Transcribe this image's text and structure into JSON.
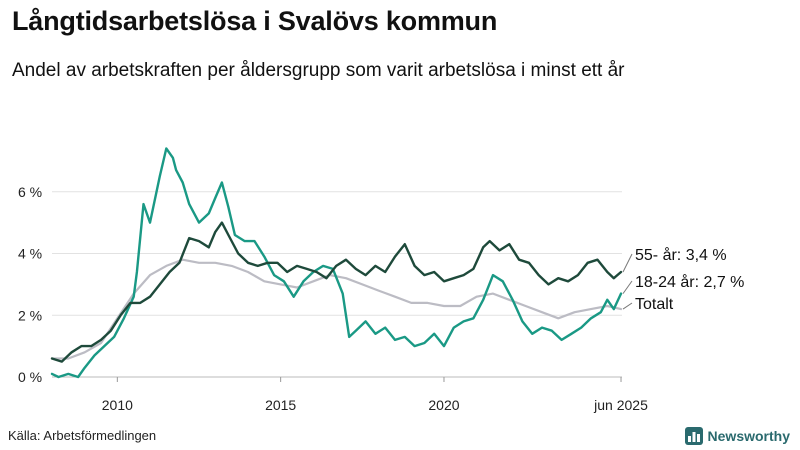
{
  "title": "Långtidsarbetslösa i Svalövs kommun",
  "subtitle": "Andel av arbetskraften per åldersgrupp som varit arbetslösa i minst ett år",
  "source": "Källa: Arbetsförmedlingen",
  "brand": "Newsworthy",
  "chart_data": {
    "type": "line",
    "ylim": [
      0,
      8
    ],
    "xlim": [
      2008.0,
      2025.45
    ],
    "yticks": [
      0,
      2,
      4,
      6
    ],
    "ytick_labels": [
      "0 %",
      "2 %",
      "4 %",
      "6 %"
    ],
    "xticks": [
      2010,
      2015,
      2020,
      2025.42
    ],
    "xtick_labels": [
      "2010",
      "2015",
      "2020",
      "jun 2025"
    ],
    "grid": true,
    "colors": {
      "age55": "#1e4a3b",
      "age18": "#1a9985",
      "total": "#bcbcc4"
    },
    "series": [
      {
        "name": "Totalt",
        "key": "total",
        "label": "Totalt",
        "x": [
          2008.0,
          2008.5,
          2009.0,
          2009.5,
          2010.0,
          2010.5,
          2011.0,
          2011.5,
          2012.0,
          2012.5,
          2013.0,
          2013.5,
          2014.0,
          2014.5,
          2015.0,
          2015.5,
          2016.0,
          2016.5,
          2017.0,
          2017.5,
          2018.0,
          2018.5,
          2019.0,
          2019.5,
          2020.0,
          2020.5,
          2021.0,
          2021.5,
          2022.0,
          2022.5,
          2023.0,
          2023.5,
          2024.0,
          2024.5,
          2025.0,
          2025.42
        ],
        "values": [
          0.6,
          0.6,
          0.8,
          1.1,
          1.9,
          2.7,
          3.3,
          3.6,
          3.8,
          3.7,
          3.7,
          3.6,
          3.4,
          3.1,
          3.0,
          2.9,
          3.1,
          3.3,
          3.2,
          3.0,
          2.8,
          2.6,
          2.4,
          2.4,
          2.3,
          2.3,
          2.6,
          2.7,
          2.5,
          2.3,
          2.1,
          1.9,
          2.1,
          2.2,
          2.3,
          2.2
        ]
      },
      {
        "name": "18-24 år",
        "key": "age18",
        "label": "18-24 år: 2,7 %",
        "x": [
          2008.0,
          2008.2,
          2008.5,
          2008.8,
          2009.0,
          2009.3,
          2009.6,
          2009.9,
          2010.2,
          2010.5,
          2010.6,
          2010.8,
          2011.0,
          2011.3,
          2011.5,
          2011.7,
          2011.8,
          2012.0,
          2012.2,
          2012.5,
          2012.8,
          2013.0,
          2013.2,
          2013.4,
          2013.6,
          2013.9,
          2014.2,
          2014.5,
          2014.8,
          2015.1,
          2015.4,
          2015.7,
          2016.0,
          2016.3,
          2016.6,
          2016.9,
          2017.1,
          2017.3,
          2017.6,
          2017.9,
          2018.2,
          2018.5,
          2018.8,
          2019.1,
          2019.4,
          2019.7,
          2020.0,
          2020.3,
          2020.6,
          2020.9,
          2021.2,
          2021.5,
          2021.8,
          2022.1,
          2022.4,
          2022.7,
          2023.0,
          2023.3,
          2023.6,
          2023.9,
          2024.2,
          2024.5,
          2024.8,
          2025.0,
          2025.2,
          2025.42
        ],
        "values": [
          0.1,
          0.0,
          0.1,
          0.0,
          0.3,
          0.7,
          1.0,
          1.3,
          1.9,
          2.6,
          3.4,
          5.6,
          5.0,
          6.5,
          7.4,
          7.1,
          6.7,
          6.3,
          5.6,
          5.0,
          5.3,
          5.8,
          6.3,
          5.5,
          4.6,
          4.4,
          4.4,
          3.9,
          3.3,
          3.1,
          2.6,
          3.1,
          3.4,
          3.6,
          3.5,
          2.7,
          1.3,
          1.5,
          1.8,
          1.4,
          1.6,
          1.2,
          1.3,
          1.0,
          1.1,
          1.4,
          1.0,
          1.6,
          1.8,
          1.9,
          2.5,
          3.3,
          3.1,
          2.5,
          1.8,
          1.4,
          1.6,
          1.5,
          1.2,
          1.4,
          1.6,
          1.9,
          2.1,
          2.5,
          2.2,
          2.7
        ]
      },
      {
        "name": "55- år",
        "key": "age55",
        "label": "55- år: 3,4 %",
        "x": [
          2008.0,
          2008.3,
          2008.6,
          2008.9,
          2009.2,
          2009.5,
          2009.8,
          2010.1,
          2010.4,
          2010.7,
          2011.0,
          2011.3,
          2011.6,
          2011.9,
          2012.2,
          2012.5,
          2012.8,
          2013.0,
          2013.2,
          2013.4,
          2013.7,
          2014.0,
          2014.3,
          2014.6,
          2014.9,
          2015.2,
          2015.5,
          2015.8,
          2016.1,
          2016.4,
          2016.7,
          2017.0,
          2017.3,
          2017.6,
          2017.9,
          2018.2,
          2018.5,
          2018.8,
          2019.1,
          2019.4,
          2019.7,
          2020.0,
          2020.3,
          2020.6,
          2020.9,
          2021.2,
          2021.4,
          2021.7,
          2022.0,
          2022.3,
          2022.6,
          2022.9,
          2023.2,
          2023.5,
          2023.8,
          2024.1,
          2024.4,
          2024.7,
          2025.0,
          2025.2,
          2025.42
        ],
        "values": [
          0.6,
          0.5,
          0.8,
          1.0,
          1.0,
          1.2,
          1.5,
          2.0,
          2.4,
          2.4,
          2.6,
          3.0,
          3.4,
          3.7,
          4.5,
          4.4,
          4.2,
          4.7,
          5.0,
          4.6,
          4.0,
          3.7,
          3.6,
          3.7,
          3.7,
          3.4,
          3.6,
          3.5,
          3.4,
          3.2,
          3.6,
          3.8,
          3.5,
          3.3,
          3.6,
          3.4,
          3.9,
          4.3,
          3.6,
          3.3,
          3.4,
          3.1,
          3.2,
          3.3,
          3.5,
          4.2,
          4.4,
          4.1,
          4.3,
          3.8,
          3.7,
          3.3,
          3.0,
          3.2,
          3.1,
          3.3,
          3.7,
          3.8,
          3.4,
          3.2,
          3.4
        ]
      }
    ]
  }
}
